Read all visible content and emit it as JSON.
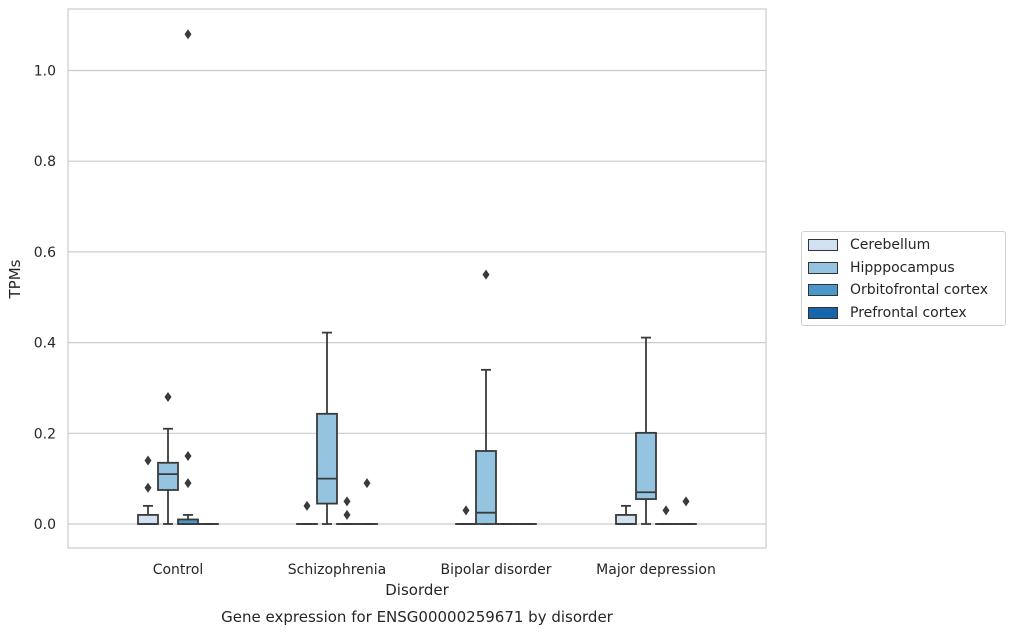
{
  "chart_data": {
    "type": "box",
    "title": "Gene expression for ENSG00000259671 by disorder",
    "xlabel": "Disorder",
    "ylabel": "TPMs",
    "ylim": [
      -0.05,
      1.13
    ],
    "yticks": [
      0.0,
      0.2,
      0.4,
      0.6,
      0.8,
      1.0
    ],
    "ytick_labels": [
      "0.0",
      "0.2",
      "0.4",
      "0.6",
      "0.8",
      "1.0"
    ],
    "grid": "horizontal",
    "legend_position": "right",
    "categories": [
      "Control",
      "Schizophrenia",
      "Bipolar disorder",
      "Major depression"
    ],
    "series": [
      {
        "name": "Cerebellum",
        "color": "#d0e1f2",
        "boxes": [
          {
            "whisker_low": 0.0,
            "q1": 0.0,
            "median": 0.0,
            "q3": 0.02,
            "whisker_high": 0.04,
            "outliers": [
              0.08,
              0.14
            ]
          },
          {
            "whisker_low": 0.0,
            "q1": 0.0,
            "median": 0.0,
            "q3": 0.0,
            "whisker_high": 0.0,
            "outliers": [
              0.04
            ]
          },
          {
            "whisker_low": 0.0,
            "q1": 0.0,
            "median": 0.0,
            "q3": 0.0,
            "whisker_high": 0.0,
            "outliers": [
              0.03
            ]
          },
          {
            "whisker_low": 0.0,
            "q1": 0.0,
            "median": 0.0,
            "q3": 0.02,
            "whisker_high": 0.04,
            "outliers": []
          }
        ]
      },
      {
        "name": "Hipppocampus",
        "color": "#94c4df",
        "boxes": [
          {
            "whisker_low": 0.0,
            "q1": 0.075,
            "median": 0.11,
            "q3": 0.135,
            "whisker_high": 0.21,
            "outliers": [
              0.28
            ]
          },
          {
            "whisker_low": 0.0,
            "q1": 0.045,
            "median": 0.1,
            "q3": 0.243,
            "whisker_high": 0.422,
            "outliers": []
          },
          {
            "whisker_low": 0.0,
            "q1": 0.0,
            "median": 0.025,
            "q3": 0.161,
            "whisker_high": 0.34,
            "outliers": [
              0.55
            ]
          },
          {
            "whisker_low": 0.0,
            "q1": 0.055,
            "median": 0.07,
            "q3": 0.201,
            "whisker_high": 0.411,
            "outliers": []
          }
        ]
      },
      {
        "name": "Orbitofrontal cortex",
        "color": "#4a98c9",
        "boxes": [
          {
            "whisker_low": 0.0,
            "q1": 0.0,
            "median": 0.0,
            "q3": 0.01,
            "whisker_high": 0.02,
            "outliers": [
              0.09,
              0.15,
              1.08
            ]
          },
          {
            "whisker_low": 0.0,
            "q1": 0.0,
            "median": 0.0,
            "q3": 0.0,
            "whisker_high": 0.0,
            "outliers": [
              0.02,
              0.05
            ]
          },
          {
            "whisker_low": 0.0,
            "q1": 0.0,
            "median": 0.0,
            "q3": 0.0,
            "whisker_high": 0.0,
            "outliers": []
          },
          {
            "whisker_low": 0.0,
            "q1": 0.0,
            "median": 0.0,
            "q3": 0.0,
            "whisker_high": 0.0,
            "outliers": [
              0.03
            ]
          }
        ]
      },
      {
        "name": "Prefrontal cortex",
        "color": "#1764ab",
        "boxes": [
          {
            "whisker_low": 0.0,
            "q1": 0.0,
            "median": 0.0,
            "q3": 0.0,
            "whisker_high": 0.0,
            "outliers": []
          },
          {
            "whisker_low": 0.0,
            "q1": 0.0,
            "median": 0.0,
            "q3": 0.0,
            "whisker_high": 0.0,
            "outliers": [
              0.09
            ]
          },
          {
            "whisker_low": 0.0,
            "q1": 0.0,
            "median": 0.0,
            "q3": 0.0,
            "whisker_high": 0.0,
            "outliers": []
          },
          {
            "whisker_low": 0.0,
            "q1": 0.0,
            "median": 0.0,
            "q3": 0.0,
            "whisker_high": 0.0,
            "outliers": [
              0.05
            ]
          }
        ]
      }
    ]
  }
}
